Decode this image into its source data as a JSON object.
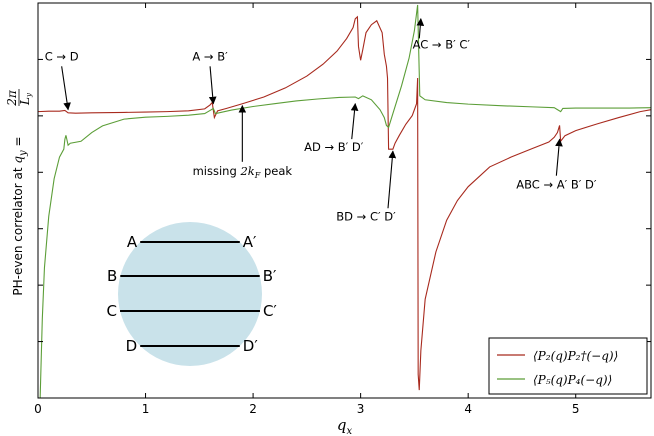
{
  "chart_data": {
    "type": "line",
    "xlabel": "q",
    "xlabel_sub": "x",
    "ylabel_text": "PH-even correlator at",
    "ylabel_math_lhs": "q",
    "ylabel_math_sub": "y",
    "ylabel_math_eq": "=",
    "ylabel_frac_num": "2π",
    "ylabel_frac_den": "L",
    "ylabel_frac_den_sub": "y",
    "xlim": [
      0,
      5.7
    ],
    "ylim": [
      0,
      1
    ],
    "x_ticks": [
      0,
      1,
      2,
      3,
      4,
      5
    ],
    "x_tick_labels": [
      "0",
      "1",
      "2",
      "3",
      "4",
      "5"
    ],
    "legend_position": "lower-right",
    "series": [
      {
        "name": "⟨P₂(q)P₂†(−q)⟩",
        "color": "#a82a1e",
        "points": [
          [
            0.0,
            0.725
          ],
          [
            0.1,
            0.726
          ],
          [
            0.2,
            0.726
          ],
          [
            0.25,
            0.728
          ],
          [
            0.28,
            0.722
          ],
          [
            0.35,
            0.721
          ],
          [
            0.5,
            0.722
          ],
          [
            0.8,
            0.723
          ],
          [
            1.0,
            0.724
          ],
          [
            1.2,
            0.725
          ],
          [
            1.4,
            0.727
          ],
          [
            1.55,
            0.732
          ],
          [
            1.6,
            0.742
          ],
          [
            1.62,
            0.748
          ],
          [
            1.64,
            0.71
          ],
          [
            1.67,
            0.727
          ],
          [
            1.75,
            0.733
          ],
          [
            1.9,
            0.745
          ],
          [
            2.1,
            0.762
          ],
          [
            2.3,
            0.785
          ],
          [
            2.5,
            0.815
          ],
          [
            2.65,
            0.845
          ],
          [
            2.78,
            0.878
          ],
          [
            2.87,
            0.91
          ],
          [
            2.93,
            0.938
          ],
          [
            2.95,
            0.96
          ],
          [
            2.97,
            0.965
          ],
          [
            2.98,
            0.89
          ],
          [
            3.0,
            0.855
          ],
          [
            3.02,
            0.882
          ],
          [
            3.05,
            0.925
          ],
          [
            3.1,
            0.945
          ],
          [
            3.15,
            0.955
          ],
          [
            3.2,
            0.925
          ],
          [
            3.22,
            0.87
          ],
          [
            3.24,
            0.84
          ],
          [
            3.25,
            0.81
          ],
          [
            3.26,
            0.63
          ],
          [
            3.3,
            0.63
          ],
          [
            3.32,
            0.645
          ],
          [
            3.36,
            0.665
          ],
          [
            3.42,
            0.693
          ],
          [
            3.48,
            0.715
          ],
          [
            3.52,
            0.745
          ],
          [
            3.53,
            0.81
          ],
          [
            3.535,
            0.06
          ],
          [
            3.545,
            0.02
          ],
          [
            3.56,
            0.12
          ],
          [
            3.6,
            0.25
          ],
          [
            3.7,
            0.37
          ],
          [
            3.8,
            0.45
          ],
          [
            3.9,
            0.5
          ],
          [
            4.0,
            0.535
          ],
          [
            4.2,
            0.585
          ],
          [
            4.4,
            0.61
          ],
          [
            4.6,
            0.632
          ],
          [
            4.75,
            0.648
          ],
          [
            4.8,
            0.66
          ],
          [
            4.83,
            0.672
          ],
          [
            4.85,
            0.69
          ],
          [
            4.86,
            0.65
          ],
          [
            4.9,
            0.664
          ],
          [
            5.0,
            0.677
          ],
          [
            5.2,
            0.694
          ],
          [
            5.4,
            0.71
          ],
          [
            5.6,
            0.725
          ],
          [
            5.7,
            0.73
          ]
        ]
      },
      {
        "name": "⟨P₅(q)P₄(−q)⟩",
        "color": "#5c9e38",
        "points": [
          [
            0.02,
            0.0
          ],
          [
            0.04,
            0.2
          ],
          [
            0.06,
            0.33
          ],
          [
            0.1,
            0.46
          ],
          [
            0.15,
            0.555
          ],
          [
            0.2,
            0.61
          ],
          [
            0.24,
            0.63
          ],
          [
            0.25,
            0.655
          ],
          [
            0.26,
            0.665
          ],
          [
            0.28,
            0.64
          ],
          [
            0.3,
            0.645
          ],
          [
            0.4,
            0.65
          ],
          [
            0.5,
            0.672
          ],
          [
            0.6,
            0.689
          ],
          [
            0.8,
            0.706
          ],
          [
            1.0,
            0.711
          ],
          [
            1.2,
            0.713
          ],
          [
            1.4,
            0.716
          ],
          [
            1.55,
            0.72
          ],
          [
            1.6,
            0.728
          ],
          [
            1.63,
            0.733
          ],
          [
            1.65,
            0.72
          ],
          [
            1.7,
            0.723
          ],
          [
            1.8,
            0.729
          ],
          [
            2.0,
            0.738
          ],
          [
            2.2,
            0.745
          ],
          [
            2.4,
            0.752
          ],
          [
            2.6,
            0.757
          ],
          [
            2.8,
            0.761
          ],
          [
            2.95,
            0.762
          ],
          [
            2.98,
            0.758
          ],
          [
            3.02,
            0.765
          ],
          [
            3.1,
            0.755
          ],
          [
            3.18,
            0.73
          ],
          [
            3.22,
            0.71
          ],
          [
            3.24,
            0.69
          ],
          [
            3.26,
            0.685
          ],
          [
            3.3,
            0.72
          ],
          [
            3.38,
            0.79
          ],
          [
            3.45,
            0.86
          ],
          [
            3.5,
            0.93
          ],
          [
            3.53,
            0.995
          ],
          [
            3.55,
            0.765
          ],
          [
            3.6,
            0.755
          ],
          [
            3.8,
            0.748
          ],
          [
            4.0,
            0.744
          ],
          [
            4.3,
            0.74
          ],
          [
            4.6,
            0.737
          ],
          [
            4.8,
            0.735
          ],
          [
            4.83,
            0.73
          ],
          [
            4.86,
            0.725
          ],
          [
            4.88,
            0.733
          ],
          [
            5.0,
            0.734
          ],
          [
            5.2,
            0.734
          ],
          [
            5.5,
            0.734
          ],
          [
            5.7,
            0.735
          ]
        ]
      }
    ],
    "annotations": [
      {
        "id": "cd",
        "text": "C → D",
        "label_x": 0.22,
        "label_y": 0.855,
        "tip_x": 0.28,
        "tip_y": 0.73
      },
      {
        "id": "ab",
        "text": "A → B′",
        "label_x": 1.6,
        "label_y": 0.855,
        "tip_x": 1.63,
        "tip_y": 0.745
      },
      {
        "id": "mk",
        "text": "missing 2k_F peak",
        "label_x": 1.9,
        "label_y": 0.565,
        "tip_x": 1.9,
        "tip_y": 0.74
      },
      {
        "id": "ad",
        "text": "AD → B′ D′",
        "label_x": 2.75,
        "label_y": 0.625,
        "tip_x": 2.95,
        "tip_y": 0.745
      },
      {
        "id": "bd",
        "text": "BD → C′ D′",
        "label_x": 3.05,
        "label_y": 0.45,
        "tip_x": 3.3,
        "tip_y": 0.625
      },
      {
        "id": "ac",
        "text": "AC → B′ C′",
        "label_x": 3.75,
        "label_y": 0.885,
        "tip_x": 3.56,
        "tip_y": 0.96
      },
      {
        "id": "abc",
        "text": "ABC → A′ B′ D′",
        "label_x": 4.82,
        "label_y": 0.53,
        "tip_x": 4.85,
        "tip_y": 0.655
      }
    ],
    "inset": {
      "left_labels": [
        "A",
        "B",
        "C",
        "D"
      ],
      "right_labels": [
        "A′",
        "B′",
        "C′",
        "D′"
      ],
      "circle_color": "#c9e2ea"
    }
  }
}
